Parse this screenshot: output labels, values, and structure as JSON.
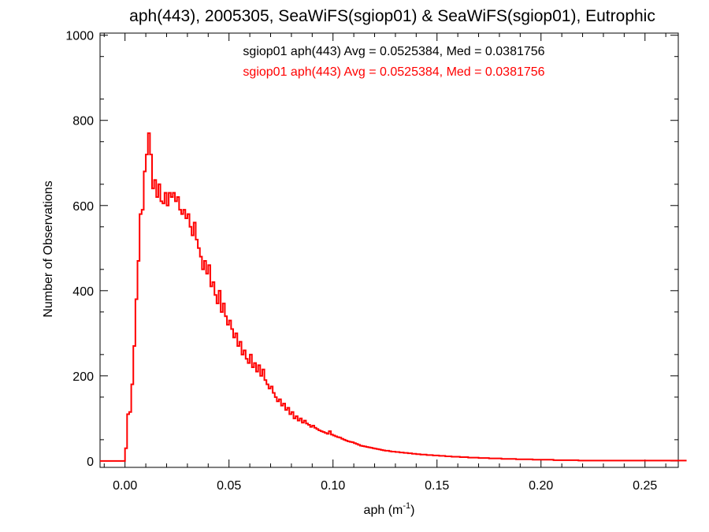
{
  "chart_data": {
    "type": "histogram-step",
    "title": "aph(443), 2005305, SeaWiFS(sgiop01) & SeaWiFS(sgiop01), Eutrophic",
    "xlabel": {
      "base": "aph (m",
      "sup": "-1",
      "tail": ")"
    },
    "ylabel": "Number of Observations",
    "xlim": [
      -0.012,
      0.266
    ],
    "ylim": [
      -15,
      1005
    ],
    "xticks": [
      {
        "value": 0.0,
        "label": "0.00"
      },
      {
        "value": 0.05,
        "label": "0.05"
      },
      {
        "value": 0.1,
        "label": "0.10"
      },
      {
        "value": 0.15,
        "label": "0.15"
      },
      {
        "value": 0.2,
        "label": "0.20"
      },
      {
        "value": 0.25,
        "label": "0.25"
      }
    ],
    "yticks": [
      {
        "value": 0,
        "label": "0"
      },
      {
        "value": 200,
        "label": "200"
      },
      {
        "value": 400,
        "label": "400"
      },
      {
        "value": 600,
        "label": "600"
      },
      {
        "value": 800,
        "label": "800"
      },
      {
        "value": 1000,
        "label": "1000"
      }
    ],
    "bin_width": 0.001,
    "bin_start": -0.012,
    "annotations": [
      {
        "text": "sgiop01 aph(443) Avg = 0.0525384, Med = 0.0381756",
        "color": "#000000"
      },
      {
        "text": "sgiop01 aph(443) Avg = 0.0525384, Med = 0.0381756",
        "color": "#ff0000"
      }
    ],
    "series": [
      {
        "name": "sgiop01 aph(443)",
        "color": "#ff0000",
        "counts": [
          0,
          0,
          0,
          0,
          0,
          0,
          0,
          0,
          0,
          0,
          0,
          0,
          30,
          110,
          115,
          180,
          270,
          380,
          470,
          580,
          590,
          680,
          720,
          770,
          720,
          640,
          660,
          620,
          650,
          610,
          605,
          630,
          600,
          630,
          620,
          630,
          610,
          620,
          590,
          580,
          590,
          570,
          580,
          550,
          530,
          560,
          520,
          500,
          480,
          450,
          470,
          440,
          460,
          410,
          420,
          390,
          370,
          400,
          350,
          370,
          340,
          320,
          330,
          310,
          290,
          300,
          270,
          280,
          250,
          260,
          240,
          230,
          250,
          220,
          230,
          210,
          225,
          200,
          215,
          190,
          180,
          170,
          175,
          160,
          150,
          140,
          145,
          130,
          135,
          120,
          125,
          110,
          115,
          100,
          105,
          95,
          100,
          90,
          95,
          88,
          85,
          80,
          83,
          78,
          75,
          72,
          70,
          68,
          66,
          64,
          70,
          62,
          60,
          58,
          56,
          55,
          52,
          50,
          48,
          46,
          45,
          44,
          42,
          40,
          38,
          36,
          35,
          34,
          33,
          32,
          31,
          30,
          29,
          28,
          27,
          26,
          25,
          24,
          24,
          23,
          22,
          22,
          21,
          21,
          20,
          20,
          19,
          19,
          18,
          18,
          17,
          17,
          16,
          16,
          15,
          15,
          15,
          14,
          14,
          14,
          13,
          13,
          13,
          12,
          12,
          12,
          11,
          11,
          11,
          10,
          10,
          10,
          10,
          9,
          9,
          9,
          9,
          8,
          8,
          8,
          8,
          8,
          7,
          7,
          7,
          7,
          7,
          6,
          6,
          6,
          6,
          6,
          6,
          5,
          5,
          5,
          5,
          5,
          5,
          5,
          4,
          4,
          4,
          4,
          4,
          4,
          4,
          4,
          3,
          3,
          3,
          3,
          3,
          3,
          3,
          3,
          3,
          3,
          2,
          2,
          2,
          2,
          2,
          2,
          2,
          2,
          2,
          2,
          2,
          2,
          1,
          1,
          1,
          1,
          1,
          1,
          1,
          1,
          1,
          1,
          1,
          1,
          1,
          1,
          1,
          1,
          1,
          1,
          1,
          1,
          1,
          1,
          1,
          1,
          1,
          1,
          1,
          1,
          1,
          1,
          1,
          1,
          1,
          1,
          1,
          1,
          1,
          1,
          1,
          1,
          1,
          1,
          1,
          1,
          1,
          1,
          1,
          1,
          1,
          1,
          1,
          1,
          1
        ]
      }
    ]
  }
}
